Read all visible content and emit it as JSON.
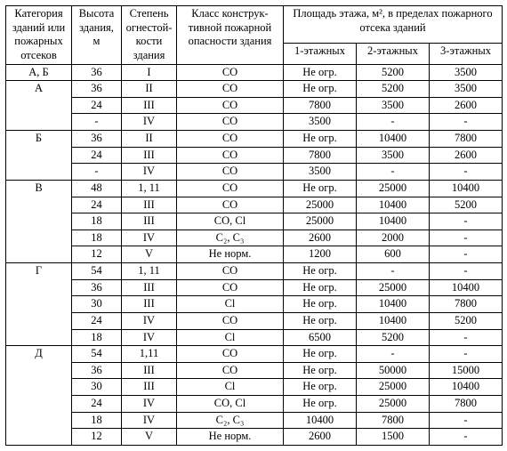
{
  "headers": {
    "col1": "Категория зданий или пожарных отсеков",
    "col2": "Высота здания, м",
    "col3": "Степень огнестой-кости здания",
    "col4": "Класс конструк-тивной пожарной опасности здания",
    "areaGroupTop": "Площадь этажа, м², в пределах пожарного отсека зданий",
    "col5": "1-этажных",
    "col6": "2-этажных",
    "col7": "3-этажных"
  },
  "rows": [
    {
      "cat": "А, Б",
      "catRowspan": 1,
      "h": "36",
      "deg": "I",
      "cls": "СО",
      "a1": "Не огр.",
      "a2": "5200",
      "a3": "3500"
    },
    {
      "cat": "А",
      "catRowspan": 3,
      "h": "36",
      "deg": "II",
      "cls": "СО",
      "a1": "Не огр.",
      "a2": "5200",
      "a3": "3500"
    },
    {
      "cat": null,
      "h": "24",
      "deg": "III",
      "cls": "СО",
      "a1": "7800",
      "a2": "3500",
      "a3": "2600"
    },
    {
      "cat": null,
      "h": "-",
      "deg": "IV",
      "cls": "СО",
      "a1": "3500",
      "a2": "-",
      "a3": "-"
    },
    {
      "cat": "Б",
      "catRowspan": 3,
      "h": "36",
      "deg": "II",
      "cls": "СО",
      "a1": "Не огр.",
      "a2": "10400",
      "a3": "7800"
    },
    {
      "cat": null,
      "h": "24",
      "deg": "III",
      "cls": "СО",
      "a1": "7800",
      "a2": "3500",
      "a3": "2600"
    },
    {
      "cat": null,
      "h": "-",
      "deg": "IV",
      "cls": "СО",
      "a1": "3500",
      "a2": "-",
      "a3": "-"
    },
    {
      "cat": "В",
      "catRowspan": 5,
      "h": "48",
      "deg": "1, 11",
      "cls": "СО",
      "a1": "Не огр.",
      "a2": "25000",
      "a3": "10400"
    },
    {
      "cat": null,
      "h": "24",
      "deg": "III",
      "cls": "СО",
      "a1": "25000",
      "a2": "10400",
      "a3": "5200"
    },
    {
      "cat": null,
      "h": "18",
      "deg": "III",
      "cls": "СО, Cl",
      "a1": "25000",
      "a2": "10400",
      "a3": "-"
    },
    {
      "cat": null,
      "h": "18",
      "deg": "IV",
      "cls": "С₂, С₃",
      "a1": "2600",
      "a2": "2000",
      "a3": "-"
    },
    {
      "cat": null,
      "h": "12",
      "deg": "V",
      "cls": "Не норм.",
      "a1": "1200",
      "a2": "600",
      "a3": "-"
    },
    {
      "cat": "Г",
      "catRowspan": 5,
      "h": "54",
      "deg": "1, 11",
      "cls": "СО",
      "a1": "Не огр.",
      "a2": "-",
      "a3": "-"
    },
    {
      "cat": null,
      "h": "36",
      "deg": "III",
      "cls": "СО",
      "a1": "Не огр.",
      "a2": "25000",
      "a3": "10400"
    },
    {
      "cat": null,
      "h": "30",
      "deg": "III",
      "cls": "Cl",
      "a1": "Не огр.",
      "a2": "10400",
      "a3": "7800"
    },
    {
      "cat": null,
      "h": "24",
      "deg": "IV",
      "cls": "СО",
      "a1": "Не огр.",
      "a2": "10400",
      "a3": "5200"
    },
    {
      "cat": null,
      "h": "18",
      "deg": "IV",
      "cls": "Cl",
      "a1": "6500",
      "a2": "5200",
      "a3": "-"
    },
    {
      "cat": "Д",
      "catRowspan": 6,
      "h": "54",
      "deg": "1,11",
      "cls": "СО",
      "a1": "Не огр.",
      "a2": "-",
      "a3": "-"
    },
    {
      "cat": null,
      "h": "36",
      "deg": "III",
      "cls": "СО",
      "a1": "Не огр.",
      "a2": "50000",
      "a3": "15000"
    },
    {
      "cat": null,
      "h": "30",
      "deg": "III",
      "cls": "Cl",
      "a1": "Не огр.",
      "a2": "25000",
      "a3": "10400"
    },
    {
      "cat": null,
      "h": "24",
      "deg": "IV",
      "cls": "СО, Cl",
      "a1": "Не огр.",
      "a2": "25000",
      "a3": "7800"
    },
    {
      "cat": null,
      "h": "18",
      "deg": "IV",
      "cls": "С₂, С₃",
      "a1": "10400",
      "a2": "7800",
      "a3": "-"
    },
    {
      "cat": null,
      "h": "12",
      "deg": "V",
      "cls": "Не норм.",
      "a1": "2600",
      "a2": "1500",
      "a3": "-"
    }
  ]
}
